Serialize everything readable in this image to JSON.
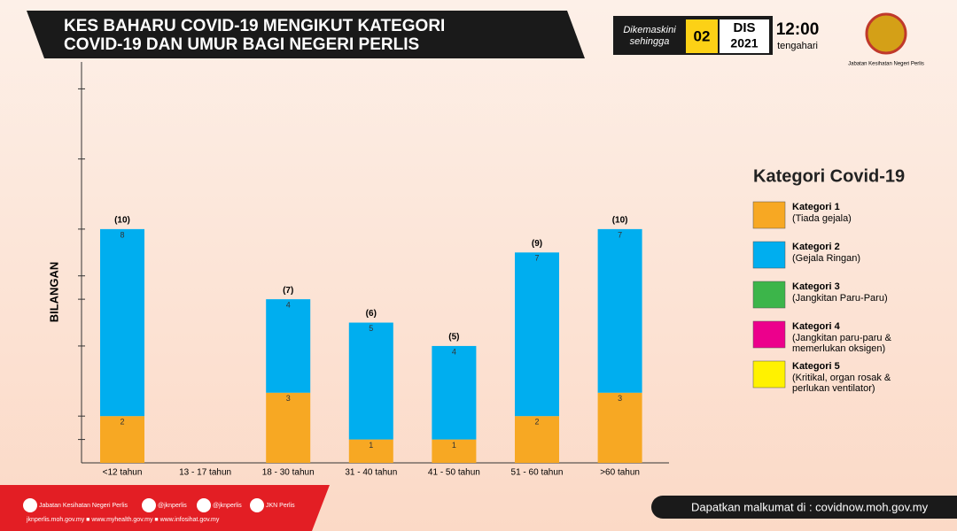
{
  "chart_data": {
    "type": "stacked_bar",
    "title": [
      "KES BAHARU COVID-19 MENGIKUT KATEGORI",
      "COVID-19 DAN UMUR BAGI NEGERI PERLIS"
    ],
    "updated": {
      "label": [
        "Dikemaskini",
        "sehingga"
      ],
      "day": "02",
      "month": "DIS",
      "year": "2021",
      "time": "12:00",
      "period": "tengahari"
    },
    "agency": "Jabatan Kesihatan Negeri Perlis",
    "y_label": "BILANGAN",
    "categories": [
      "<12 tahun",
      "13 - 17 tahun",
      "18 - 30 tahun",
      "31 - 40 tahun",
      "41 - 50 tahun",
      "51 - 60 tahun",
      ">60 tahun"
    ],
    "series": [
      {
        "name": "Kategori 1",
        "description": [
          "(Tiada gejala)"
        ],
        "color": "#f7a823",
        "values": [
          2,
          null,
          3,
          1,
          1,
          2,
          3
        ]
      },
      {
        "name": "Kategori 2",
        "description": [
          "(Gejala Ringan)"
        ],
        "color": "#00aeef",
        "values": [
          8,
          null,
          4,
          5,
          4,
          7,
          7
        ]
      },
      {
        "name": "Kategori 3",
        "description": [
          "(Jangkitan Paru-Paru)"
        ],
        "color": "#3cb54a",
        "values": [
          null,
          null,
          null,
          null,
          null,
          null,
          null
        ]
      },
      {
        "name": "Kategori 4",
        "description": [
          "(Jangkitan paru-paru &",
          "memerlukan oksigen)"
        ],
        "color": "#ec008c",
        "values": [
          null,
          null,
          null,
          null,
          null,
          null,
          null
        ]
      },
      {
        "name": "Kategori 5",
        "description": [
          "(Kritikal, organ rosak &",
          "perlukan ventilator)"
        ],
        "color": "#fff200",
        "values": [
          null,
          null,
          null,
          null,
          null,
          null,
          null
        ]
      }
    ],
    "totals": [
      10,
      null,
      7,
      6,
      5,
      9,
      10
    ],
    "total_labels": [
      "(10)",
      null,
      "(7)",
      "(6)",
      "(5)",
      "(9)",
      "(10)"
    ],
    "legend_title": "Kategori Covid-19",
    "ylim": [
      0,
      17
    ],
    "yticks": [
      1,
      2,
      5,
      7,
      8,
      10,
      13,
      16
    ],
    "footer": {
      "social": [
        "Jabatan Kesihatan Negeri Perlis",
        "@jknperlis",
        "@jknperlis",
        "JKN Perlis"
      ],
      "links": "jknperlis.moh.gov.my ■ www.myhealth.gov.my ■ www.infosihat.gov.my",
      "info": "Dapatkan malkumat di : covidnow.moh.gov.my"
    }
  }
}
